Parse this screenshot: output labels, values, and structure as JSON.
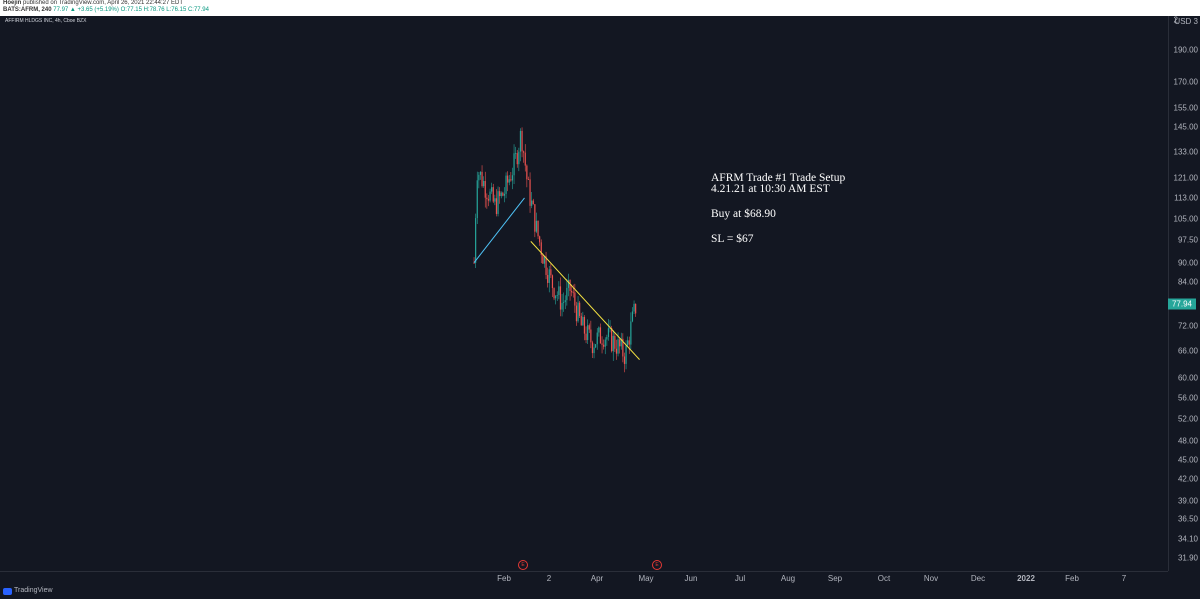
{
  "header": {
    "author": "Hoejin",
    "published": "published on TradingView.com, April 26, 2021 22:44:27 EDT",
    "symbol": "BATS:AFRM, 240",
    "quote": "77.97 ▲ +3.65 (+5.19%)",
    "ohlc": "O:77.15 H:78.76 L:76.15 C:77.94"
  },
  "instrument_label": "AFFIRM HLDGS INC, 4h, Cboe BZX",
  "annotation": {
    "line1": "AFRM Trade #1 Trade Setup",
    "line2": "4.21.21 at 10:30 AM EST",
    "line3": "Buy at $68.90",
    "line4": "SL = $67"
  },
  "price_axis": {
    "currency": "USD",
    "top_partial": "2",
    "top_partial_right": "3",
    "current_price": "77.94"
  },
  "events": [
    {
      "label": "E",
      "date": "Feb 10"
    },
    {
      "label": "E",
      "date": "Apr 25"
    }
  ],
  "footer": {
    "brand": "TradingView"
  },
  "colors": {
    "background": "#131722",
    "up": "#26a69a",
    "down": "#ef5350",
    "trendline_blue": "#4fc3f7",
    "trendline_yellow": "#f5e342",
    "price_tag": "#26a69a"
  },
  "chart_data": {
    "type": "candlestick",
    "title": "",
    "scale": "log",
    "y_ticks": [
      190.0,
      170.0,
      155.0,
      145.0,
      133.0,
      121.0,
      113.0,
      105.0,
      97.5,
      90.0,
      84.0,
      77.94,
      72.0,
      66.0,
      60.0,
      56.0,
      52.0,
      48.0,
      45.0,
      42.0,
      39.0,
      36.5,
      34.1,
      31.9
    ],
    "x_ticks": [
      "Feb",
      "2",
      "Apr",
      "May",
      "Jun",
      "Jul",
      "Aug",
      "Sep",
      "Oct",
      "Nov",
      "Dec",
      "2022",
      "Feb",
      "7"
    ],
    "approx_price_path": [
      [
        "Jan 13",
        90
      ],
      [
        "Jan 15",
        125
      ],
      [
        "Jan 20",
        118
      ],
      [
        "Jan 26",
        110
      ],
      [
        "Feb 1",
        115
      ],
      [
        "Feb 8",
        128
      ],
      [
        "Feb 12",
        142
      ],
      [
        "Feb 16",
        118
      ],
      [
        "Feb 22",
        100
      ],
      [
        "Feb 26",
        92
      ],
      [
        "Mar 3",
        84
      ],
      [
        "Mar 10",
        78
      ],
      [
        "Mar 15",
        82
      ],
      [
        "Mar 22",
        72
      ],
      [
        "Mar 29",
        68
      ],
      [
        "Apr 5",
        70
      ],
      [
        "Apr 12",
        68
      ],
      [
        "Apr 19",
        65
      ],
      [
        "Apr 21",
        68.9
      ],
      [
        "Apr 26",
        77.94
      ]
    ],
    "trendlines": [
      {
        "color": "blue",
        "from": [
          "Jan 13",
          90
        ],
        "to": [
          "Feb 14",
          113
        ]
      },
      {
        "color": "yellow",
        "from": [
          "Feb 18",
          97
        ],
        "to": [
          "Apr 28",
          64
        ]
      }
    ]
  }
}
